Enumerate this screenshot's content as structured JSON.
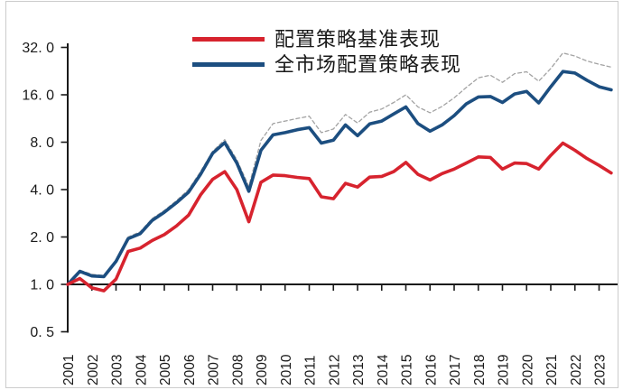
{
  "frame": {
    "border_color": "#cccccc",
    "background": "#ffffff"
  },
  "chart_data": {
    "type": "line",
    "title": "",
    "xlabel": "",
    "ylabel": "",
    "grid": false,
    "axis_color": "#1a1a1a",
    "tick_label_color": "#1a1a1a",
    "legend": {
      "position": "top-center",
      "entries": [
        "配置策略基准表现",
        "全市场配置策略表现"
      ]
    },
    "x_axis": {
      "min": 2001,
      "max": 2023.75,
      "tick_years": [
        2001,
        2002,
        2003,
        2004,
        2005,
        2006,
        2007,
        2008,
        2009,
        2010,
        2011,
        2012,
        2013,
        2014,
        2015,
        2016,
        2017,
        2018,
        2019,
        2020,
        2021,
        2022,
        2023
      ]
    },
    "y_axis": {
      "scale": "log2",
      "min": 0.5,
      "max": 32,
      "baseline_value": 1.0,
      "ticks": [
        {
          "label": "32. 0",
          "value": 32
        },
        {
          "label": "16. 0",
          "value": 16
        },
        {
          "label": "8. 0",
          "value": 8
        },
        {
          "label": "4. 0",
          "value": 4
        },
        {
          "label": "2. 0",
          "value": 2
        },
        {
          "label": "1. 0",
          "value": 1
        },
        {
          "label": "0. 5",
          "value": 0.5
        }
      ]
    },
    "x": [
      2001,
      2001.5,
      2002,
      2002.5,
      2003,
      2003.5,
      2004,
      2004.5,
      2005,
      2005.5,
      2006,
      2006.5,
      2007,
      2007.5,
      2008,
      2008.5,
      2009,
      2009.5,
      2010,
      2010.5,
      2011,
      2011.5,
      2012,
      2012.5,
      2013,
      2013.5,
      2014,
      2014.5,
      2015,
      2015.5,
      2016,
      2016.5,
      2017,
      2017.5,
      2018,
      2018.5,
      2019,
      2019.5,
      2020,
      2020.5,
      2021,
      2021.5,
      2022,
      2022.5,
      2023,
      2023.5
    ],
    "series": [
      {
        "name": "配置策略基准表现",
        "color": "#d7232e",
        "dash": "",
        "width": 3.6,
        "in_legend": true,
        "values": [
          1.0,
          1.09,
          0.95,
          0.91,
          1.08,
          1.62,
          1.7,
          1.9,
          2.07,
          2.35,
          2.75,
          3.7,
          4.65,
          5.2,
          4.0,
          2.5,
          4.45,
          4.95,
          4.9,
          4.78,
          4.7,
          3.6,
          3.5,
          4.38,
          4.15,
          4.8,
          4.85,
          5.2,
          5.95,
          5.0,
          4.6,
          5.05,
          5.4,
          5.9,
          6.45,
          6.4,
          5.4,
          5.9,
          5.85,
          5.4,
          6.6,
          7.9,
          7.1,
          6.3,
          5.7,
          5.1
        ]
      },
      {
        "name": "全市场配置策略表现",
        "color": "#1c4e80",
        "dash": "",
        "width": 3.6,
        "in_legend": true,
        "values": [
          1.0,
          1.21,
          1.13,
          1.12,
          1.4,
          1.95,
          2.1,
          2.55,
          2.87,
          3.3,
          3.85,
          5.0,
          6.8,
          7.95,
          5.9,
          3.9,
          7.1,
          8.9,
          9.2,
          9.6,
          9.9,
          7.9,
          8.25,
          10.3,
          8.8,
          10.45,
          10.9,
          12.1,
          13.4,
          10.5,
          9.4,
          10.3,
          11.8,
          14.0,
          15.5,
          15.6,
          14.3,
          16.2,
          16.8,
          14.2,
          18.0,
          22.5,
          22.0,
          19.8,
          18.0,
          17.2
        ]
      },
      {
        "name": "",
        "color": "#a3a3a3",
        "dash": "4 3",
        "width": 1.3,
        "in_legend": false,
        "values": [
          1.0,
          1.23,
          1.16,
          1.14,
          1.43,
          2.0,
          2.16,
          2.62,
          2.95,
          3.4,
          4.0,
          5.2,
          7.0,
          8.3,
          6.2,
          4.2,
          8.2,
          10.5,
          10.9,
          11.3,
          11.7,
          9.2,
          9.7,
          12.0,
          10.6,
          12.4,
          13.0,
          14.3,
          16.0,
          13.4,
          12.3,
          13.5,
          15.3,
          17.8,
          20.5,
          21.3,
          19.2,
          21.8,
          22.4,
          19.5,
          23.5,
          29.5,
          28.2,
          26.2,
          25.0,
          24.0
        ]
      }
    ]
  }
}
